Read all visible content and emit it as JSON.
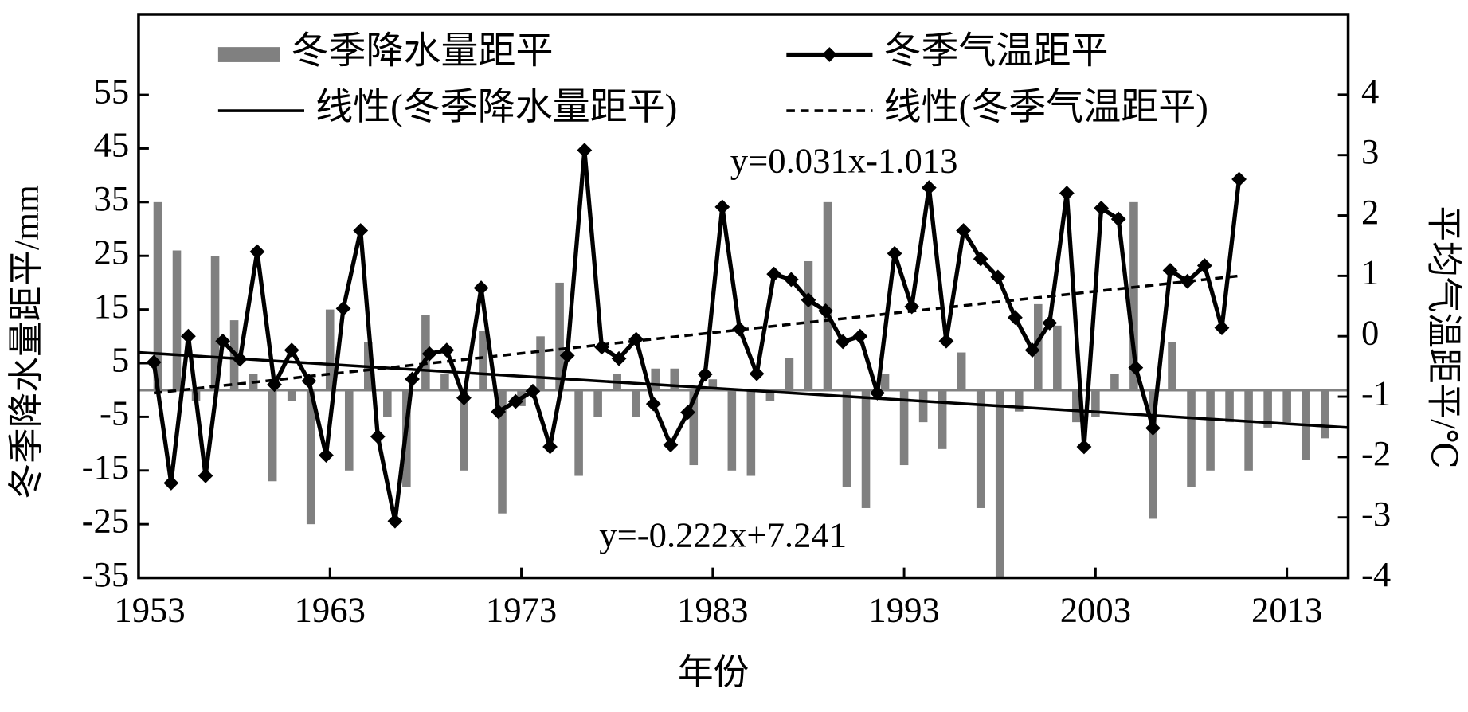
{
  "chart_data": {
    "type": "combo",
    "x_label": "年份",
    "y_label": "冬季降水量距平/mm",
    "y2_label": "平均气温距平/℃",
    "xlim": [
      1953,
      2016.2
    ],
    "xticks": [
      1953,
      1963,
      1973,
      1983,
      1993,
      2003,
      2013
    ],
    "ylim": [
      -35,
      70
    ],
    "yticks": [
      -35,
      -25,
      -15,
      -5,
      5,
      15,
      25,
      35,
      45,
      55
    ],
    "y2lim": [
      -4,
      5.33
    ],
    "y2ticks": [
      -4,
      -3,
      -2,
      -1,
      0,
      1,
      2,
      3,
      4
    ],
    "legend": "top",
    "annotations": [
      "y=0.031x-1.013",
      "y=-0.222x+7.241"
    ],
    "series": [
      {
        "name": "冬季降水量距平",
        "type": "bar",
        "color": "#808080",
        "x": [
          1954,
          1955,
          1956,
          1957,
          1958,
          1959,
          1960,
          1961,
          1962,
          1963,
          1964,
          1965,
          1966,
          1967,
          1968,
          1969,
          1970,
          1971,
          1972,
          1973,
          1974,
          1975,
          1976,
          1977,
          1978,
          1979,
          1980,
          1981,
          1982,
          1983,
          1984,
          1985,
          1986,
          1987,
          1988,
          1989,
          1990,
          1991,
          1992,
          1993,
          1994,
          1995,
          1996,
          1997,
          1998,
          1999,
          2000,
          2001,
          2002,
          2003,
          2004,
          2005,
          2006,
          2007,
          2008,
          2009,
          2010,
          2011,
          2012,
          2013,
          2014,
          2015
        ],
        "values": [
          35,
          26,
          -2,
          25,
          13,
          3,
          -17,
          -2,
          -25,
          15,
          -15,
          9,
          -5,
          -18,
          14,
          3,
          -15,
          11,
          -23,
          -3,
          10,
          20,
          -16,
          -5,
          3,
          -5,
          4,
          4,
          -14,
          2,
          -15,
          -16,
          -2,
          6,
          24,
          35,
          -18,
          -22,
          3,
          -14,
          -6,
          -11,
          7,
          -22,
          -35,
          -4,
          16,
          12,
          -6,
          -5,
          3,
          35,
          -24,
          9,
          -18,
          -15,
          -6,
          -15,
          -7,
          -6,
          -13,
          -9
        ]
      },
      {
        "name": "冬季气温距平",
        "type": "line",
        "axis": "y2",
        "color": "#000000",
        "marker": "diamond",
        "style": "solid",
        "x": [
          1953.8,
          1954.7,
          1955.6,
          1956.5,
          1957.4,
          1958.3,
          1959.2,
          1960.1,
          1961,
          1961.9,
          1962.8,
          1963.7,
          1964.6,
          1965.5,
          1966.4,
          1967.3,
          1968.2,
          1969.1,
          1970,
          1970.9,
          1971.8,
          1972.7,
          1973.6,
          1974.5,
          1975.4,
          1976.3,
          1977.2,
          1978.1,
          1979,
          1979.9,
          1980.8,
          1981.7,
          1982.6,
          1983.5,
          1984.4,
          1985.3,
          1986.2,
          1987.1,
          1988,
          1988.9,
          1989.8,
          1990.7,
          1991.6,
          1992.5,
          1993.4,
          1994.3,
          1995.2,
          1996.1,
          1997,
          1997.9,
          1998.8,
          1999.7,
          2000.6,
          2001.5,
          2002.4,
          2003.3,
          2004.2,
          2005.1,
          2006,
          2006.9,
          2007.8,
          2008.7,
          2009.6,
          2010.5
        ],
        "values": [
          -0.43,
          -2.43,
          0.0,
          -2.31,
          -0.08,
          -0.38,
          1.4,
          -0.8,
          -0.23,
          -0.74,
          -1.97,
          0.46,
          1.75,
          -1.66,
          -3.06,
          -0.71,
          -0.29,
          -0.23,
          -1.02,
          0.8,
          -1.25,
          -1.08,
          -0.91,
          -1.83,
          -0.32,
          3.08,
          -0.18,
          -0.37,
          -0.05,
          -1.12,
          -1.8,
          -1.26,
          -0.63,
          2.14,
          0.12,
          -0.62,
          1.03,
          0.94,
          0.6,
          0.42,
          -0.09,
          0.0,
          -0.94,
          1.37,
          0.49,
          2.46,
          -0.08,
          1.75,
          1.28,
          0.98,
          0.31,
          -0.23,
          0.22,
          2.37,
          -1.83,
          2.12,
          1.94,
          -0.52,
          -1.52,
          1.09,
          0.91,
          1.17,
          0.14,
          2.6
        ]
      },
      {
        "name": "线性(冬季降水量距平)",
        "type": "line",
        "color": "#000000",
        "style": "solid",
        "x": [
          1953,
          2016.2
        ],
        "values": [
          7,
          -7
        ]
      },
      {
        "name": "线性(冬季气温距平)",
        "type": "line",
        "axis": "y2",
        "color": "#000000",
        "style": "dashed",
        "x": [
          1953.8,
          2010.5
        ],
        "values": [
          -0.94,
          1.0
        ]
      }
    ]
  }
}
